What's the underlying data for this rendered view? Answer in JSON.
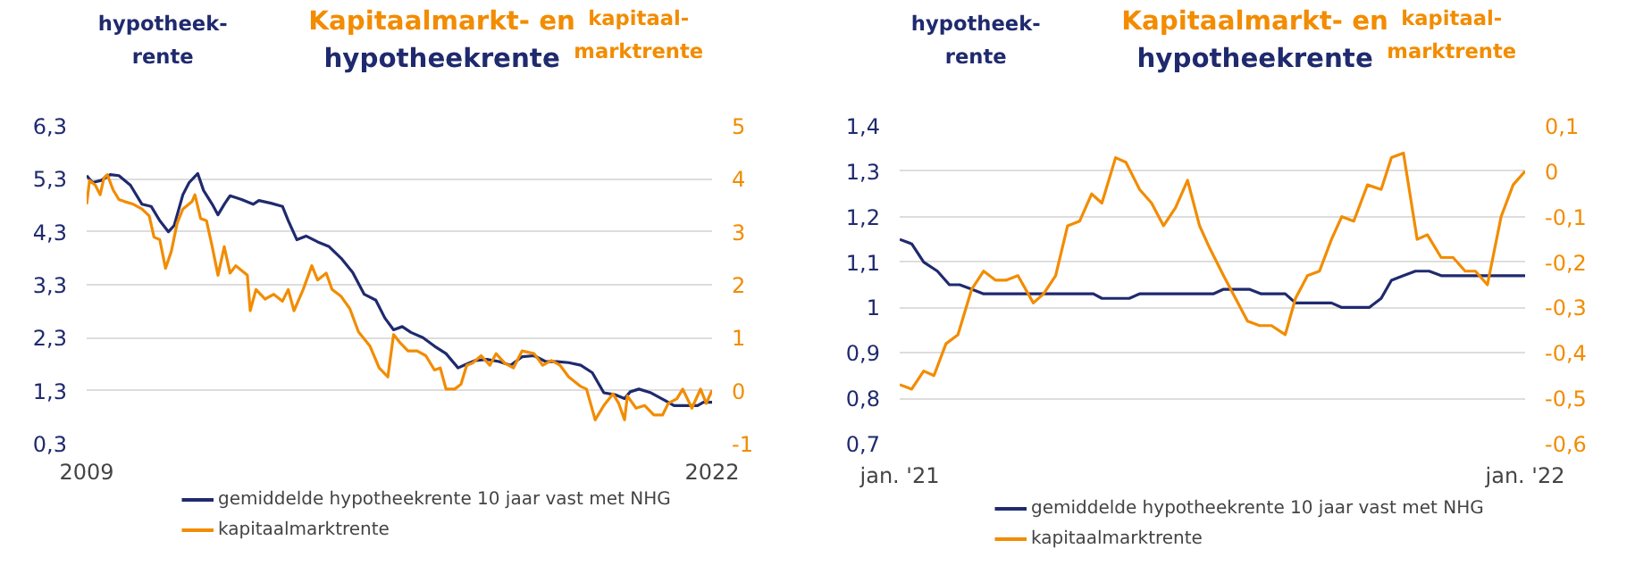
{
  "chart_data": [
    {
      "type": "line",
      "title": "Kapitaalmarkt- en\nhypotheekrente",
      "ylabel": "hypotheek-\nrente",
      "y2label": "kapitaal-\nmarktrente",
      "xlim": [
        2009,
        2022
      ],
      "xticks": [
        2009,
        2022
      ],
      "ylim": [
        0.3,
        6.3
      ],
      "yticks": [
        {
          "value": 0.3,
          "label": "0,3"
        },
        {
          "value": 1.3,
          "label": "1,3"
        },
        {
          "value": 2.3,
          "label": "2,3"
        },
        {
          "value": 3.3,
          "label": "3,3"
        },
        {
          "value": 4.3,
          "label": "4,3"
        },
        {
          "value": 5.3,
          "label": "5,3"
        },
        {
          "value": 6.3,
          "label": "6,3"
        }
      ],
      "y2lim": [
        -1,
        5
      ],
      "y2ticks": [
        -1,
        0,
        1,
        2,
        3,
        4,
        5
      ],
      "grid": "y",
      "legend": "bottom",
      "line_style": "solid",
      "series": [
        {
          "name": "gemiddelde hypotheekrente 10 jaar vast met NHG",
          "color": "#1f2a6e",
          "x": [
            2009.0,
            2009.12,
            2009.3,
            2009.49,
            2009.67,
            2009.91,
            2010.15,
            2010.34,
            2010.52,
            2010.7,
            2010.82,
            2011.0,
            2011.13,
            2011.31,
            2011.43,
            2011.61,
            2011.73,
            2011.86,
            2011.98,
            2012.22,
            2012.46,
            2012.58,
            2012.83,
            2013.07,
            2013.19,
            2013.37,
            2013.56,
            2013.8,
            2014.04,
            2014.29,
            2014.53,
            2014.77,
            2015.01,
            2015.2,
            2015.38,
            2015.56,
            2015.74,
            2015.99,
            2016.23,
            2016.47,
            2016.72,
            2016.84,
            2017.08,
            2017.32,
            2017.57,
            2017.81,
            2018.05,
            2018.3,
            2018.54,
            2018.78,
            2019.02,
            2019.27,
            2019.51,
            2019.75,
            2020.0,
            2020.18,
            2020.3,
            2020.48,
            2020.73,
            2021.03,
            2021.21,
            2021.58,
            2021.7,
            2021.82,
            2022.0
          ],
          "values": [
            5.36,
            5.23,
            5.27,
            5.38,
            5.36,
            5.18,
            4.82,
            4.78,
            4.51,
            4.3,
            4.42,
            5.0,
            5.23,
            5.4,
            5.08,
            4.82,
            4.62,
            4.82,
            4.98,
            4.91,
            4.82,
            4.89,
            4.84,
            4.78,
            4.51,
            4.15,
            4.22,
            4.11,
            4.02,
            3.8,
            3.53,
            3.12,
            3.01,
            2.67,
            2.45,
            2.51,
            2.4,
            2.3,
            2.14,
            2.0,
            1.73,
            1.78,
            1.87,
            1.89,
            1.85,
            1.78,
            1.94,
            1.96,
            1.85,
            1.85,
            1.83,
            1.78,
            1.64,
            1.26,
            1.22,
            1.15,
            1.28,
            1.33,
            1.26,
            1.11,
            1.02,
            1.02,
            1.02,
            1.08,
            1.08
          ]
        },
        {
          "name": "kapitaalmarktrente",
          "color": "#f28c00",
          "axis": "y2",
          "x": [
            2009.0,
            2009.06,
            2009.18,
            2009.28,
            2009.36,
            2009.43,
            2009.55,
            2009.67,
            2009.79,
            2009.97,
            2010.15,
            2010.3,
            2010.4,
            2010.52,
            2010.64,
            2010.76,
            2010.88,
            2011.0,
            2011.19,
            2011.25,
            2011.37,
            2011.49,
            2011.61,
            2011.73,
            2011.86,
            2011.98,
            2012.1,
            2012.22,
            2012.34,
            2012.4,
            2012.52,
            2012.71,
            2012.89,
            2013.07,
            2013.19,
            2013.31,
            2013.5,
            2013.68,
            2013.8,
            2013.98,
            2014.1,
            2014.29,
            2014.47,
            2014.65,
            2014.89,
            2015.08,
            2015.26,
            2015.38,
            2015.5,
            2015.68,
            2015.87,
            2016.05,
            2016.23,
            2016.35,
            2016.47,
            2016.65,
            2016.78,
            2016.9,
            2017.02,
            2017.2,
            2017.38,
            2017.51,
            2017.69,
            2017.87,
            2018.05,
            2018.3,
            2018.48,
            2018.66,
            2018.84,
            2019.02,
            2019.27,
            2019.39,
            2019.57,
            2019.75,
            2019.94,
            2020.06,
            2020.18,
            2020.24,
            2020.42,
            2020.6,
            2020.79,
            2020.97,
            2021.09,
            2021.27,
            2021.39,
            2021.58,
            2021.76,
            2021.88,
            2022.0
          ],
          "values": [
            3.52,
            3.97,
            3.88,
            3.7,
            4.02,
            4.08,
            3.79,
            3.61,
            3.57,
            3.52,
            3.43,
            3.3,
            2.9,
            2.85,
            2.31,
            2.63,
            3.16,
            3.43,
            3.57,
            3.7,
            3.25,
            3.21,
            2.72,
            2.18,
            2.72,
            2.22,
            2.36,
            2.27,
            2.18,
            1.51,
            1.91,
            1.73,
            1.82,
            1.69,
            1.91,
            1.51,
            1.91,
            2.36,
            2.09,
            2.22,
            1.91,
            1.78,
            1.55,
            1.11,
            0.84,
            0.43,
            0.26,
            1.06,
            0.92,
            0.75,
            0.75,
            0.66,
            0.39,
            0.43,
            0.03,
            0.03,
            0.12,
            0.48,
            0.52,
            0.66,
            0.48,
            0.7,
            0.52,
            0.43,
            0.75,
            0.7,
            0.48,
            0.57,
            0.48,
            0.26,
            0.08,
            0.03,
            -0.55,
            -0.28,
            -0.06,
            -0.24,
            -0.55,
            -0.1,
            -0.33,
            -0.28,
            -0.46,
            -0.46,
            -0.24,
            -0.15,
            0.03,
            -0.33,
            0.03,
            -0.24,
            0.01
          ]
        }
      ]
    },
    {
      "type": "line",
      "title": "Kapitaalmarkt- en\nhypotheekrente",
      "ylabel": "hypotheek-\nrente",
      "y2label": "kapitaal-\nmarktrente",
      "xlim": [
        "2021-01-01",
        "2022-01-01"
      ],
      "xticks": [
        {
          "value": "2021-01-01",
          "label": "jan. '21"
        },
        {
          "value": "2022-01-01",
          "label": "jan. '22"
        }
      ],
      "ylim": [
        0.7,
        1.4
      ],
      "yticks": [
        {
          "value": 0.7,
          "label": "0,7"
        },
        {
          "value": 0.8,
          "label": "0,8"
        },
        {
          "value": 0.9,
          "label": "0,9"
        },
        {
          "value": 1.0,
          "label": "1"
        },
        {
          "value": 1.1,
          "label": "1,1"
        },
        {
          "value": 1.2,
          "label": "1,2"
        },
        {
          "value": 1.3,
          "label": "1,3"
        },
        {
          "value": 1.4,
          "label": "1,4"
        }
      ],
      "y2lim": [
        -0.6,
        0.1
      ],
      "y2ticks": [
        {
          "value": -0.6,
          "label": "-0,6"
        },
        {
          "value": -0.5,
          "label": "-0,5"
        },
        {
          "value": -0.4,
          "label": "-0,4"
        },
        {
          "value": -0.3,
          "label": "-0,3"
        },
        {
          "value": -0.2,
          "label": "-0,2"
        },
        {
          "value": -0.1,
          "label": "-0,1"
        },
        {
          "value": 0,
          "label": "0"
        },
        {
          "value": 0.1,
          "label": "0,1"
        }
      ],
      "grid": "y",
      "legend": "bottom",
      "line_style": "solid",
      "series": [
        {
          "name": "gemiddelde hypotheekrente 10 jaar vast met NHG",
          "color": "#1f2a6e",
          "x": [
            "2021-01-01",
            "2021-01-08",
            "2021-01-15",
            "2021-01-23",
            "2021-01-30",
            "2021-02-05",
            "2021-02-12",
            "2021-02-19",
            "2021-04-24",
            "2021-04-29",
            "2021-05-15",
            "2021-05-21",
            "2021-07-03",
            "2021-07-09",
            "2021-07-24",
            "2021-07-31",
            "2021-08-14",
            "2021-08-20",
            "2021-09-10",
            "2021-09-16",
            "2021-10-02",
            "2021-10-09",
            "2021-10-15",
            "2021-10-22",
            "2021-10-29",
            "2021-11-06",
            "2021-11-13",
            "2022-01-01"
          ],
          "values": [
            1.15,
            1.14,
            1.1,
            1.08,
            1.05,
            1.05,
            1.04,
            1.03,
            1.03,
            1.02,
            1.02,
            1.03,
            1.03,
            1.04,
            1.04,
            1.03,
            1.03,
            1.01,
            1.01,
            1.0,
            1.0,
            1.02,
            1.06,
            1.07,
            1.08,
            1.08,
            1.07,
            1.07
          ]
        },
        {
          "name": "kapitaalmarktrente",
          "color": "#f28c00",
          "axis": "y2",
          "x": [
            "2021-01-01",
            "2021-01-08",
            "2021-01-15",
            "2021-01-21",
            "2021-01-28",
            "2021-02-04",
            "2021-02-12",
            "2021-02-19",
            "2021-02-26",
            "2021-03-04",
            "2021-03-11",
            "2021-03-20",
            "2021-03-26",
            "2021-04-02",
            "2021-04-09",
            "2021-04-16",
            "2021-04-23",
            "2021-04-29",
            "2021-05-07",
            "2021-05-13",
            "2021-05-21",
            "2021-05-28",
            "2021-06-04",
            "2021-06-11",
            "2021-06-18",
            "2021-06-25",
            "2021-07-01",
            "2021-07-09",
            "2021-07-16",
            "2021-07-23",
            "2021-07-30",
            "2021-08-06",
            "2021-08-14",
            "2021-08-20",
            "2021-08-27",
            "2021-09-03",
            "2021-09-10",
            "2021-09-16",
            "2021-09-23",
            "2021-10-01",
            "2021-10-09",
            "2021-10-15",
            "2021-10-22",
            "2021-10-30",
            "2021-11-05",
            "2021-11-13",
            "2021-11-20",
            "2021-11-27",
            "2021-12-03",
            "2021-12-10",
            "2021-12-18",
            "2021-12-25",
            "2022-01-01"
          ],
          "values": [
            -0.47,
            -0.48,
            -0.44,
            -0.45,
            -0.38,
            -0.36,
            -0.26,
            -0.22,
            -0.24,
            -0.24,
            -0.23,
            -0.29,
            -0.27,
            -0.23,
            -0.12,
            -0.11,
            -0.05,
            -0.07,
            0.03,
            0.02,
            -0.04,
            -0.07,
            -0.12,
            -0.08,
            -0.02,
            -0.12,
            -0.17,
            -0.23,
            -0.28,
            -0.33,
            -0.34,
            -0.34,
            -0.36,
            -0.28,
            -0.23,
            -0.22,
            -0.15,
            -0.1,
            -0.11,
            -0.03,
            -0.04,
            0.03,
            0.04,
            -0.15,
            -0.14,
            -0.19,
            -0.19,
            -0.22,
            -0.22,
            -0.25,
            -0.1,
            -0.03,
            0.0
          ]
        }
      ]
    }
  ]
}
